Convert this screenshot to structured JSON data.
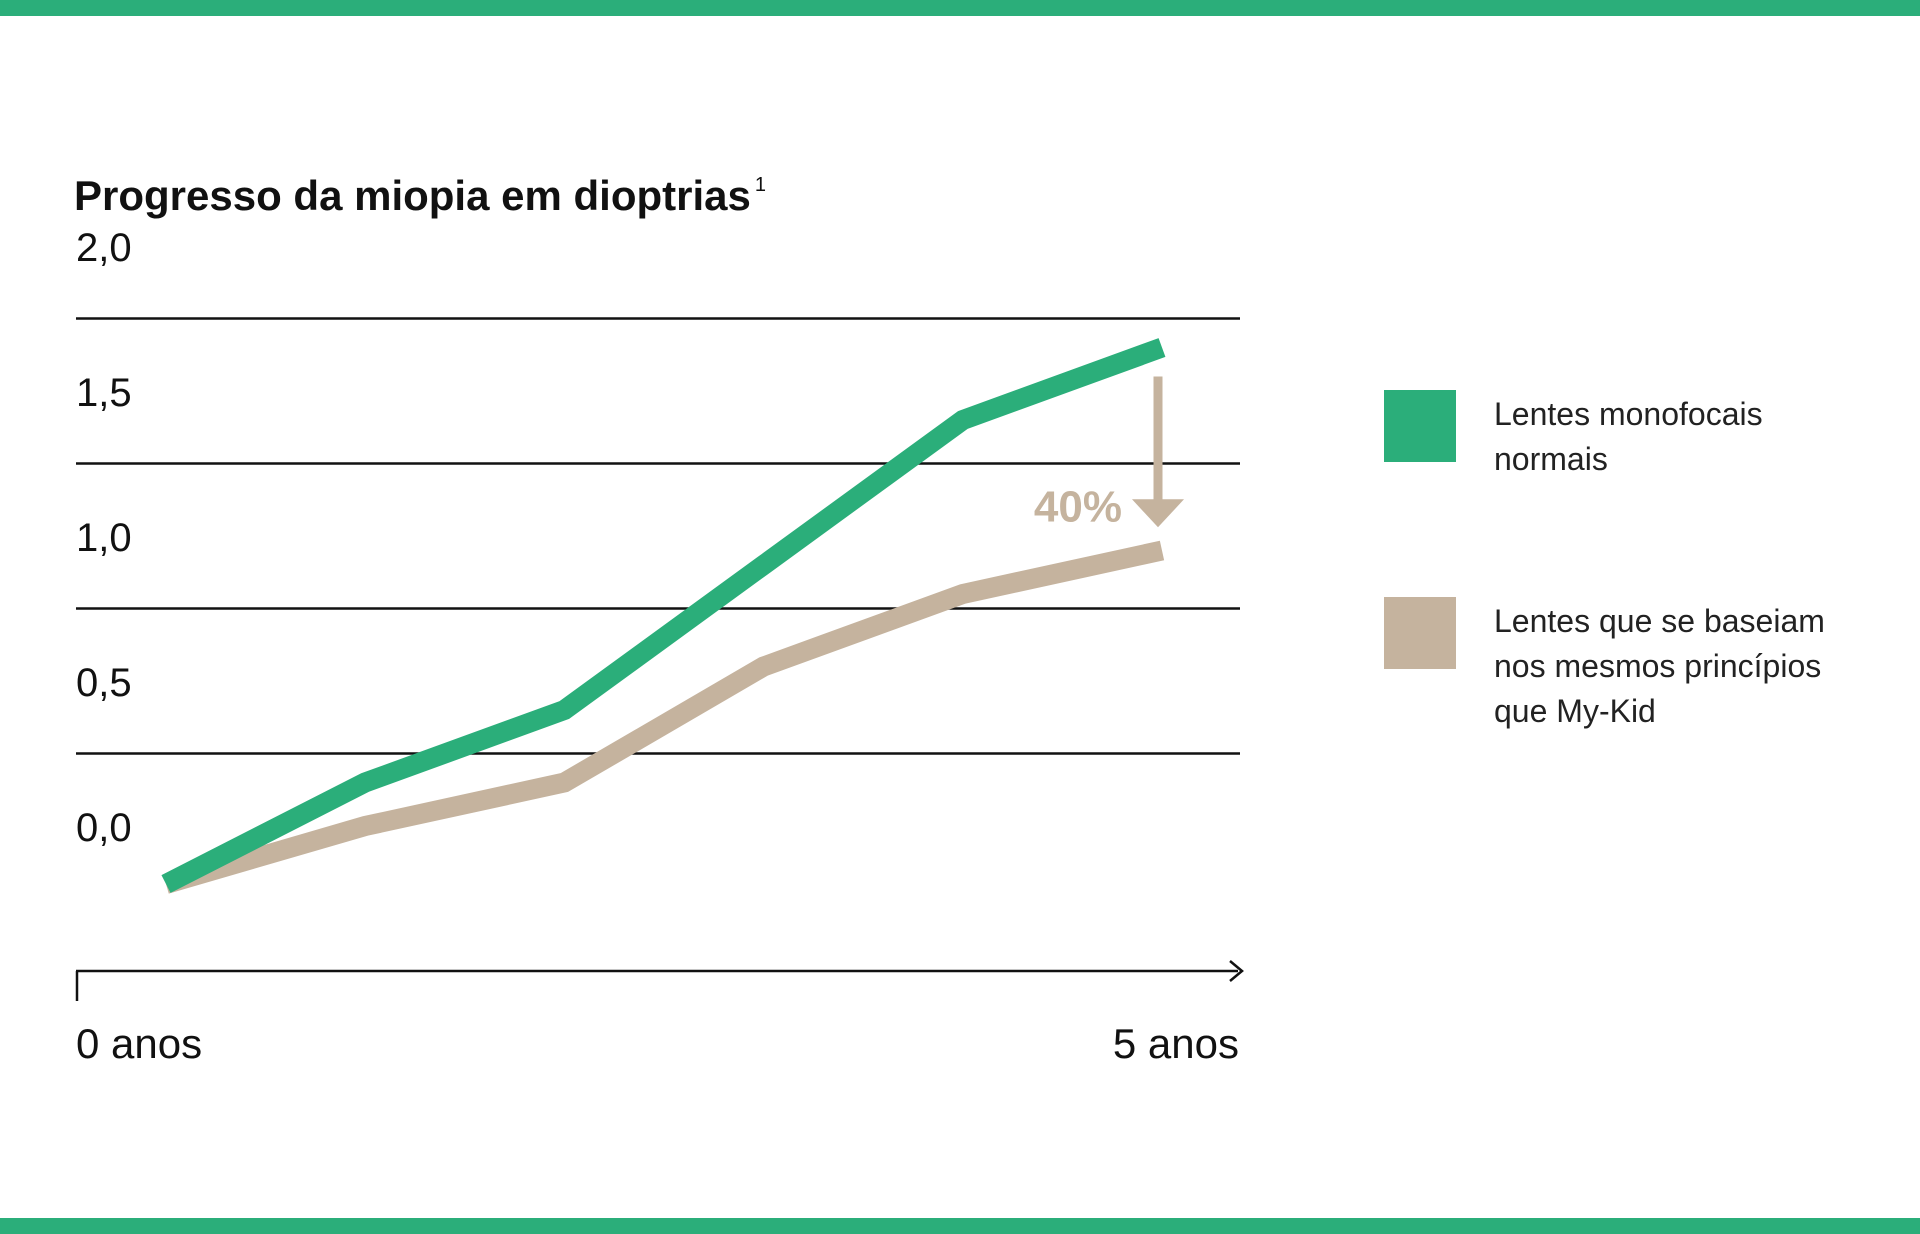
{
  "title": "Progresso da miopia em dioptrias",
  "title_footnote": "1",
  "colors": {
    "accent_band": "#2bae7a",
    "series_green": "#2bae7a",
    "series_beige": "#c5b39e",
    "axis": "#111111",
    "text": "#111111"
  },
  "chart_data": {
    "type": "line",
    "title": "Progresso da miopia em dioptrias",
    "xlabel": "",
    "ylabel": "",
    "x_tick_labels": [
      "0 anos",
      "5 anos"
    ],
    "xlim": [
      0,
      5
    ],
    "ylim": [
      0,
      2.0
    ],
    "y_ticks": [
      0.0,
      0.5,
      1.0,
      1.5,
      2.0
    ],
    "y_tick_labels": [
      "0,0",
      "0,5",
      "1,0",
      "1,5",
      "2,0"
    ],
    "grid": true,
    "legend_position": "right",
    "series": [
      {
        "name": "Lentes monofocais normais",
        "color": "#2bae7a",
        "x": [
          0,
          1,
          2,
          3,
          4,
          5
        ],
        "y": [
          -0.2,
          0.15,
          0.4,
          0.9,
          1.4,
          1.65
        ]
      },
      {
        "name": "Lentes que se baseiam nos mesmos princípios que My-Kid",
        "color": "#c5b39e",
        "x": [
          0,
          1,
          2,
          3,
          4,
          5
        ],
        "y": [
          -0.2,
          0.0,
          0.15,
          0.55,
          0.8,
          0.95
        ]
      }
    ],
    "annotations": [
      {
        "text": "40%",
        "x": 5,
        "y_from": 1.55,
        "y_to": 1.03,
        "type": "arrow-down"
      }
    ]
  },
  "legend": [
    {
      "label_lines": [
        "Lentes monofocais",
        "normais"
      ],
      "color": "#2bae7a"
    },
    {
      "label_lines": [
        "Lentes que se baseiam",
        "nos mesmos princípios",
        "que My-Kid"
      ],
      "color": "#c5b39e"
    }
  ]
}
